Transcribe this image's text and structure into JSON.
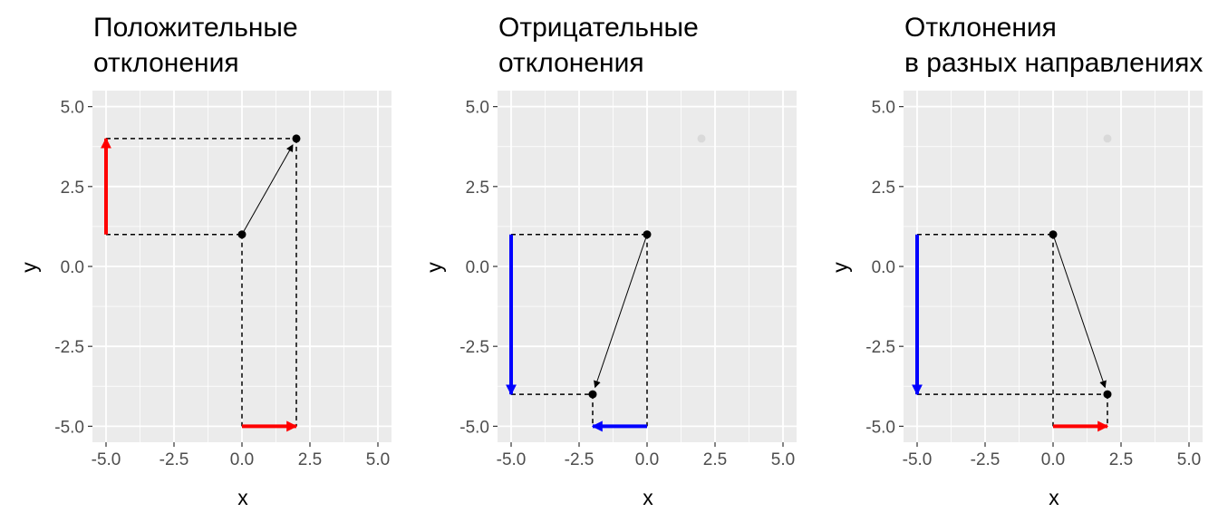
{
  "chart_data": [
    {
      "type": "scatter",
      "title": [
        "Положительные",
        "отклонения"
      ],
      "xlabel": "x",
      "ylabel": "y",
      "xlim": [
        -5.5,
        5.5
      ],
      "ylim": [
        -5.5,
        5.5
      ],
      "xticks": [
        -5,
        -2.5,
        0,
        2.5,
        5
      ],
      "yticks": [
        -5,
        -2.5,
        0,
        2.5,
        5
      ],
      "xtick_labels": [
        "-5.0",
        "-2.5",
        "0.0",
        "2.5",
        "5.0"
      ],
      "ytick_labels": [
        "-5.0",
        "-2.5",
        "0.0",
        "2.5",
        "5.0"
      ],
      "grid": true,
      "ghost_point": null,
      "points": [
        {
          "x": 0,
          "y": 1
        },
        {
          "x": 2,
          "y": 4
        }
      ],
      "vector": {
        "from": [
          0,
          1
        ],
        "to": [
          2,
          4
        ]
      },
      "dashed_lines": [
        {
          "from": [
            -5,
            1
          ],
          "to": [
            0,
            1
          ]
        },
        {
          "from": [
            -5,
            4
          ],
          "to": [
            2,
            4
          ]
        },
        {
          "from": [
            0,
            1
          ],
          "to": [
            0,
            -5
          ]
        },
        {
          "from": [
            2,
            4
          ],
          "to": [
            2,
            -5
          ]
        }
      ],
      "deviation_arrows": [
        {
          "from": [
            -5,
            1
          ],
          "to": [
            -5,
            4
          ],
          "color": "#ff0000"
        },
        {
          "from": [
            0,
            -5
          ],
          "to": [
            2,
            -5
          ],
          "color": "#ff0000"
        }
      ]
    },
    {
      "type": "scatter",
      "title": [
        "Отрицательные",
        "отклонения"
      ],
      "xlabel": "x",
      "ylabel": "y",
      "xlim": [
        -5.5,
        5.5
      ],
      "ylim": [
        -5.5,
        5.5
      ],
      "xticks": [
        -5,
        -2.5,
        0,
        2.5,
        5
      ],
      "yticks": [
        -5,
        -2.5,
        0,
        2.5,
        5
      ],
      "xtick_labels": [
        "-5.0",
        "-2.5",
        "0.0",
        "2.5",
        "5.0"
      ],
      "ytick_labels": [
        "-5.0",
        "-2.5",
        "0.0",
        "2.5",
        "5.0"
      ],
      "grid": true,
      "ghost_point": {
        "x": 2,
        "y": 4
      },
      "points": [
        {
          "x": 0,
          "y": 1
        },
        {
          "x": -2,
          "y": -4
        }
      ],
      "vector": {
        "from": [
          0,
          1
        ],
        "to": [
          -2,
          -4
        ]
      },
      "dashed_lines": [
        {
          "from": [
            -5,
            1
          ],
          "to": [
            0,
            1
          ]
        },
        {
          "from": [
            -5,
            -4
          ],
          "to": [
            -2,
            -4
          ]
        },
        {
          "from": [
            0,
            1
          ],
          "to": [
            0,
            -5
          ]
        },
        {
          "from": [
            -2,
            -4
          ],
          "to": [
            -2,
            -5
          ]
        }
      ],
      "deviation_arrows": [
        {
          "from": [
            -5,
            1
          ],
          "to": [
            -5,
            -4
          ],
          "color": "#0000ff"
        },
        {
          "from": [
            0,
            -5
          ],
          "to": [
            -2,
            -5
          ],
          "color": "#0000ff"
        }
      ]
    },
    {
      "type": "scatter",
      "title": [
        "Отклонения",
        "в разных направлениях"
      ],
      "xlabel": "x",
      "ylabel": "y",
      "xlim": [
        -5.5,
        5.5
      ],
      "ylim": [
        -5.5,
        5.5
      ],
      "xticks": [
        -5,
        -2.5,
        0,
        2.5,
        5
      ],
      "yticks": [
        -5,
        -2.5,
        0,
        2.5,
        5
      ],
      "xtick_labels": [
        "-5.0",
        "-2.5",
        "0.0",
        "2.5",
        "5.0"
      ],
      "ytick_labels": [
        "-5.0",
        "-2.5",
        "0.0",
        "2.5",
        "5.0"
      ],
      "grid": true,
      "ghost_point": {
        "x": 2,
        "y": 4
      },
      "points": [
        {
          "x": 0,
          "y": 1
        },
        {
          "x": 2,
          "y": -4
        }
      ],
      "vector": {
        "from": [
          0,
          1
        ],
        "to": [
          2,
          -4
        ]
      },
      "dashed_lines": [
        {
          "from": [
            -5,
            1
          ],
          "to": [
            0,
            1
          ]
        },
        {
          "from": [
            -5,
            -4
          ],
          "to": [
            2,
            -4
          ]
        },
        {
          "from": [
            0,
            1
          ],
          "to": [
            0,
            -5
          ]
        },
        {
          "from": [
            2,
            -4
          ],
          "to": [
            2,
            -5
          ]
        }
      ],
      "deviation_arrows": [
        {
          "from": [
            -5,
            1
          ],
          "to": [
            -5,
            -4
          ],
          "color": "#0000ff"
        },
        {
          "from": [
            0,
            -5
          ],
          "to": [
            2,
            -5
          ],
          "color": "#ff0000"
        }
      ]
    }
  ],
  "colors": {
    "panel_background": "#ebebeb",
    "grid": "#ffffff",
    "point": "#000000",
    "ghost_point": "#d9d9d9",
    "tick_text": "#4d4d4d",
    "tick_mark": "#333333"
  }
}
